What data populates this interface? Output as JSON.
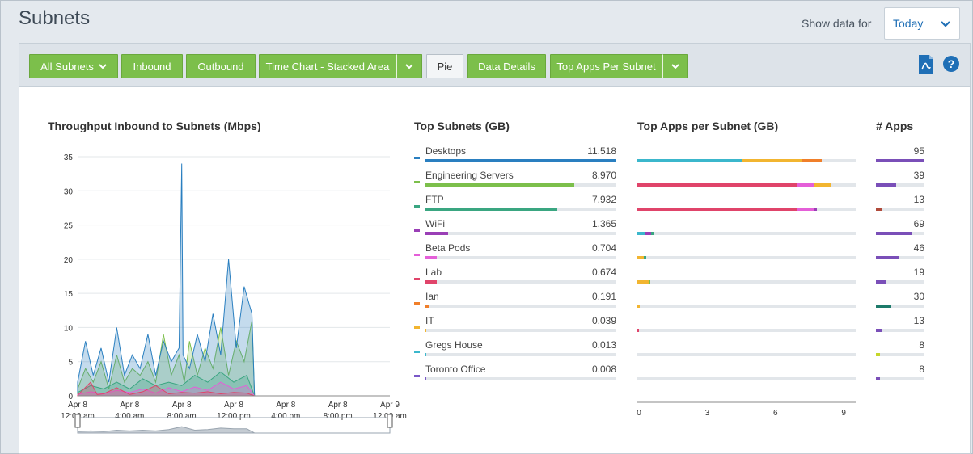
{
  "header": {
    "title": "Subnets",
    "show_label": "Show data for",
    "date_selected": "Today"
  },
  "toolbar": {
    "all_subnets": "All Subnets",
    "inbound": "Inbound",
    "outbound": "Outbound",
    "chart_type": "Time Chart - Stacked Area",
    "pie": "Pie",
    "data_details": "Data Details",
    "top_apps": "Top Apps Per Subnet",
    "export_icon": "pdf-export-icon",
    "help_icon": "help-icon"
  },
  "colors": {
    "brand_green": "#7cbf4b",
    "link_blue": "#1f6fb6"
  },
  "throughput": {
    "title": "Throughput Inbound to Subnets (Mbps)"
  },
  "top_subnets": {
    "title": "Top Subnets (GB)",
    "rows": [
      {
        "name": "Desktops",
        "value": "11.518",
        "color": "#2a7fc0",
        "num": 11.518
      },
      {
        "name": "Engineering Servers",
        "value": "8.970",
        "color": "#7cbf4b",
        "num": 8.97
      },
      {
        "name": "FTP",
        "value": "7.932",
        "color": "#3aa681",
        "num": 7.932
      },
      {
        "name": "WiFi",
        "value": "1.365",
        "color": "#9a3fb6",
        "num": 1.365
      },
      {
        "name": "Beta Pods",
        "value": "0.704",
        "color": "#e45fd8",
        "num": 0.704
      },
      {
        "name": "Lab",
        "value": "0.674",
        "color": "#e0446a",
        "num": 0.674
      },
      {
        "name": "Ian",
        "value": "0.191",
        "color": "#f07f2a",
        "num": 0.191
      },
      {
        "name": "IT",
        "value": "0.039",
        "color": "#f2b530",
        "num": 0.039
      },
      {
        "name": "Gregs House",
        "value": "0.013",
        "color": "#3bb7cc",
        "num": 0.013
      },
      {
        "name": "Toronto Office",
        "value": "0.008",
        "color": "#7a58c8",
        "num": 0.008
      }
    ]
  },
  "top_apps": {
    "title": "Top Apps per Subnet (GB)",
    "axis_ticks": [
      "0",
      "3",
      "6",
      "9"
    ],
    "rows": [
      [
        {
          "v": 4.6,
          "c": "#3bb7cc"
        },
        {
          "v": 2.6,
          "c": "#f2b530"
        },
        {
          "v": 0.9,
          "c": "#f07f2a"
        }
      ],
      [
        {
          "v": 7.0,
          "c": "#e0446a"
        },
        {
          "v": 0.8,
          "c": "#e45fd8"
        },
        {
          "v": 0.7,
          "c": "#f2b530"
        }
      ],
      [
        {
          "v": 7.0,
          "c": "#e0446a"
        },
        {
          "v": 0.8,
          "c": "#e45fd8"
        },
        {
          "v": 0.1,
          "c": "#9a3fb6"
        }
      ],
      [
        {
          "v": 0.35,
          "c": "#3bb7cc"
        },
        {
          "v": 0.25,
          "c": "#9a3fb6"
        },
        {
          "v": 0.1,
          "c": "#3aa681"
        }
      ],
      [
        {
          "v": 0.3,
          "c": "#f2b530"
        },
        {
          "v": 0.1,
          "c": "#3aa681"
        }
      ],
      [
        {
          "v": 0.5,
          "c": "#f2b530"
        },
        {
          "v": 0.06,
          "c": "#7cbf4b"
        }
      ],
      [
        {
          "v": 0.1,
          "c": "#f2b530"
        }
      ],
      [
        {
          "v": 0.03,
          "c": "#e0446a"
        }
      ],
      [],
      []
    ]
  },
  "apps_count": {
    "title": "# Apps",
    "rows": [
      {
        "value": "95",
        "num": 95,
        "color": "#7a4fb8"
      },
      {
        "value": "39",
        "num": 39,
        "color": "#7a4fb8"
      },
      {
        "value": "13",
        "num": 13,
        "color": "#b04a3a"
      },
      {
        "value": "69",
        "num": 69,
        "color": "#7a4fb8"
      },
      {
        "value": "46",
        "num": 46,
        "color": "#7a4fb8"
      },
      {
        "value": "19",
        "num": 19,
        "color": "#7a4fb8"
      },
      {
        "value": "30",
        "num": 30,
        "color": "#1d7a6a"
      },
      {
        "value": "13",
        "num": 13,
        "color": "#7a4fb8"
      },
      {
        "value": "8",
        "num": 8,
        "color": "#c5d62a"
      },
      {
        "value": "8",
        "num": 8,
        "color": "#7a4fb8"
      }
    ]
  },
  "chart_data": {
    "type": "area",
    "title": "Throughput Inbound to Subnets (Mbps)",
    "ylim": [
      0,
      35
    ],
    "yticks": [
      0,
      5,
      10,
      15,
      20,
      25,
      30,
      35
    ],
    "xlim_hours": [
      0,
      24
    ],
    "xticks": [
      {
        "h": 0,
        "l1": "Apr 8",
        "l2": "12:00 am"
      },
      {
        "h": 4,
        "l1": "Apr 8",
        "l2": "4:00 am"
      },
      {
        "h": 8,
        "l1": "Apr 8",
        "l2": "8:00 am"
      },
      {
        "h": 12,
        "l1": "Apr 8",
        "l2": "12:00 pm"
      },
      {
        "h": 16,
        "l1": "Apr 8",
        "l2": "4:00 pm"
      },
      {
        "h": 20,
        "l1": "Apr 8",
        "l2": "8:00 pm"
      },
      {
        "h": 24,
        "l1": "Apr 9",
        "l2": "12:00 am"
      }
    ],
    "series": [
      {
        "color": "#7cbf4b",
        "x": [
          0,
          0.6,
          1.2,
          1.8,
          2.4,
          3,
          3.6,
          4.2,
          4.8,
          5.4,
          6,
          6.6,
          7.2,
          7.8,
          8.2,
          8.6,
          9.2,
          9.8,
          10.4,
          11,
          11.6,
          12.2,
          12.8,
          13.4,
          13.6
        ],
        "y": [
          1,
          4,
          2,
          5,
          1,
          6,
          2,
          4,
          3,
          5,
          2,
          9,
          3,
          6,
          2,
          8,
          3,
          7,
          4,
          10,
          3,
          8,
          5,
          11,
          0
        ]
      },
      {
        "color": "#2a7fc0",
        "x": [
          0,
          0.6,
          1.2,
          1.8,
          2.4,
          3,
          3.6,
          4.2,
          4.8,
          5.4,
          6,
          6.6,
          7.2,
          7.8,
          8,
          8.1,
          8.6,
          9.2,
          9.8,
          10.4,
          11,
          11.6,
          12.2,
          12.8,
          13.4,
          13.6
        ],
        "y": [
          2,
          8,
          3,
          7,
          2,
          10,
          3,
          6,
          4,
          9,
          3,
          8,
          5,
          7,
          34,
          6,
          4,
          9,
          5,
          12,
          6,
          20,
          7,
          16,
          12,
          0
        ]
      },
      {
        "color": "#3aa681",
        "x": [
          0,
          1,
          2,
          3,
          4,
          5,
          6,
          7,
          8,
          9,
          10,
          11,
          12,
          13,
          13.6
        ],
        "y": [
          0.5,
          1.5,
          1,
          2,
          1,
          2.5,
          1.5,
          2,
          1.5,
          3,
          2,
          3.5,
          2,
          3,
          0
        ]
      },
      {
        "color": "#e45fd8",
        "x": [
          0,
          1,
          2,
          3,
          4,
          5,
          6,
          7,
          8,
          9,
          10,
          11,
          12,
          13,
          13.6
        ],
        "y": [
          0.2,
          0.6,
          0.3,
          0.8,
          0.5,
          1,
          0.4,
          1.2,
          0.6,
          1.3,
          0.8,
          2,
          1,
          1.5,
          0
        ]
      },
      {
        "color": "#e0446a",
        "x": [
          0,
          1,
          1.5,
          2,
          3,
          4,
          5,
          6,
          7,
          8,
          9,
          10,
          11,
          12,
          13,
          13.6
        ],
        "y": [
          0.1,
          2,
          0.2,
          0.3,
          1.2,
          0.2,
          0.6,
          1.5,
          0.3,
          0.5,
          0.4,
          0.6,
          0.3,
          0.5,
          0.4,
          0
        ]
      }
    ],
    "overview": {
      "color": "#9aa5b0",
      "x": [
        0,
        1,
        2,
        3,
        4,
        5,
        6,
        7,
        8,
        9,
        10,
        11,
        12,
        13,
        13.6
      ],
      "y": [
        2,
        3,
        2,
        4,
        3,
        4,
        3,
        5,
        9,
        4,
        5,
        7,
        6,
        6,
        0
      ]
    }
  }
}
